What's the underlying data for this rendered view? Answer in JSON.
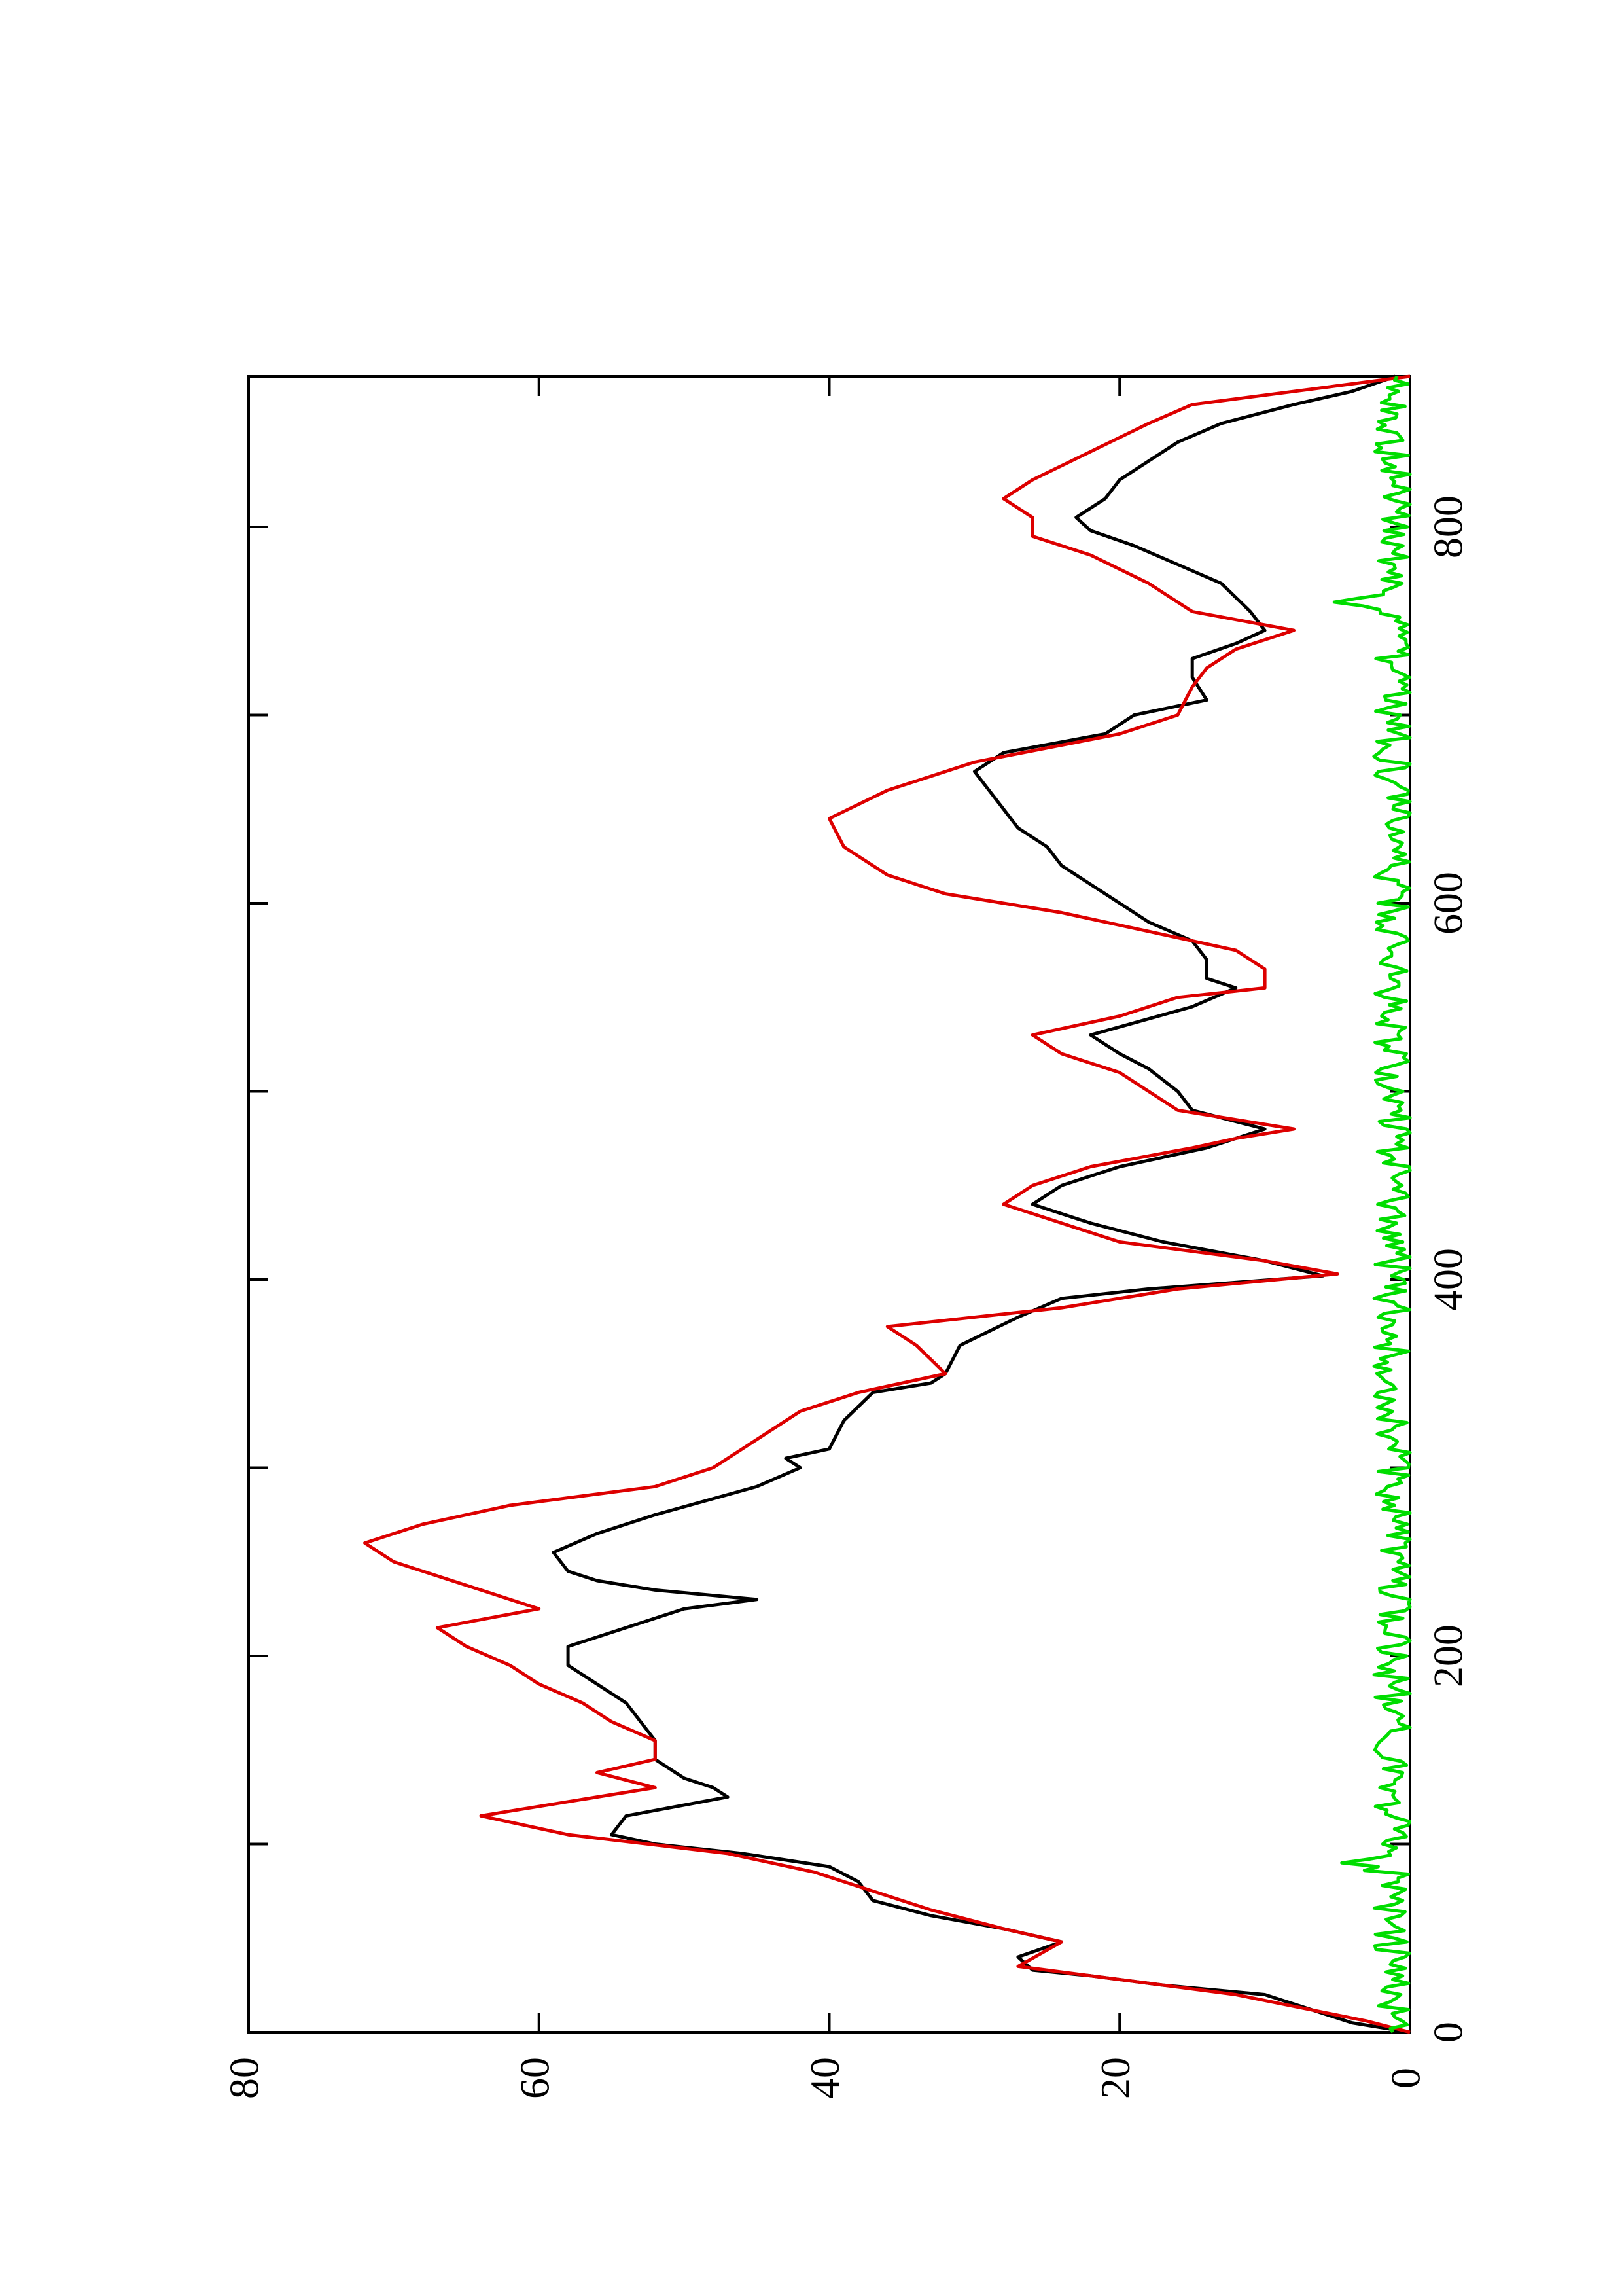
{
  "chart_data": {
    "type": "line",
    "orientation": "rotated-90-ccw",
    "title": "",
    "xlabel": "",
    "ylabel": "",
    "xlim": [
      0,
      880
    ],
    "ylim": [
      0,
      80
    ],
    "x_ticks": [
      "0",
      "200",
      "400",
      "600",
      "800"
    ],
    "y_ticks": [
      "0",
      "20",
      "40",
      "60",
      "80"
    ],
    "x_minor_ticks": [
      100,
      300,
      500,
      700
    ],
    "grid": false,
    "legend": "none",
    "series": [
      {
        "color": "#000000",
        "points": [
          [
            0,
            0
          ],
          [
            5,
            4
          ],
          [
            10,
            6
          ],
          [
            20,
            10
          ],
          [
            25,
            17
          ],
          [
            30,
            22
          ],
          [
            33,
            26
          ],
          [
            40,
            27
          ],
          [
            48,
            24
          ],
          [
            55,
            28
          ],
          [
            62,
            33
          ],
          [
            70,
            37
          ],
          [
            80,
            38
          ],
          [
            88,
            40
          ],
          [
            95,
            46
          ],
          [
            100,
            52
          ],
          [
            105,
            55
          ],
          [
            115,
            54
          ],
          [
            125,
            47
          ],
          [
            130,
            48
          ],
          [
            135,
            50
          ],
          [
            145,
            52
          ],
          [
            155,
            52
          ],
          [
            165,
            53
          ],
          [
            175,
            54
          ],
          [
            185,
            56
          ],
          [
            195,
            58
          ],
          [
            205,
            58
          ],
          [
            215,
            54
          ],
          [
            225,
            50
          ],
          [
            230,
            45
          ],
          [
            235,
            52
          ],
          [
            240,
            56
          ],
          [
            245,
            58
          ],
          [
            255,
            59
          ],
          [
            265,
            56
          ],
          [
            275,
            52
          ],
          [
            290,
            45
          ],
          [
            300,
            42
          ],
          [
            305,
            43
          ],
          [
            310,
            40
          ],
          [
            325,
            39
          ],
          [
            340,
            37
          ],
          [
            345,
            33
          ],
          [
            350,
            32
          ],
          [
            365,
            31
          ],
          [
            380,
            27
          ],
          [
            390,
            24
          ],
          [
            395,
            18
          ],
          [
            402,
            6
          ],
          [
            410,
            10
          ],
          [
            420,
            17
          ],
          [
            430,
            22
          ],
          [
            440,
            26
          ],
          [
            450,
            24
          ],
          [
            460,
            20
          ],
          [
            470,
            14
          ],
          [
            475,
            12
          ],
          [
            480,
            10
          ],
          [
            490,
            15
          ],
          [
            500,
            16
          ],
          [
            512,
            18
          ],
          [
            520,
            20
          ],
          [
            530,
            22
          ],
          [
            545,
            15
          ],
          [
            555,
            12
          ],
          [
            560,
            14
          ],
          [
            570,
            14
          ],
          [
            580,
            15
          ],
          [
            590,
            18
          ],
          [
            600,
            20
          ],
          [
            620,
            24
          ],
          [
            630,
            25
          ],
          [
            640,
            27
          ],
          [
            650,
            28
          ],
          [
            660,
            29
          ],
          [
            670,
            30
          ],
          [
            680,
            28
          ],
          [
            690,
            21
          ],
          [
            700,
            19
          ],
          [
            708,
            14
          ],
          [
            720,
            15
          ],
          [
            730,
            15
          ],
          [
            738,
            12
          ],
          [
            745,
            10
          ],
          [
            755,
            11
          ],
          [
            770,
            13
          ],
          [
            780,
            16
          ],
          [
            790,
            19
          ],
          [
            798,
            22
          ],
          [
            805,
            23
          ],
          [
            815,
            21
          ],
          [
            825,
            20
          ],
          [
            835,
            18
          ],
          [
            845,
            16
          ],
          [
            855,
            13
          ],
          [
            865,
            8
          ],
          [
            872,
            4
          ],
          [
            880,
            1
          ]
        ]
      },
      {
        "color": "#dd0000",
        "points": [
          [
            0,
            0
          ],
          [
            6,
            3
          ],
          [
            20,
            12
          ],
          [
            35,
            27
          ],
          [
            48,
            24
          ],
          [
            55,
            28
          ],
          [
            65,
            33
          ],
          [
            75,
            37
          ],
          [
            85,
            41
          ],
          [
            95,
            47
          ],
          [
            105,
            58
          ],
          [
            115,
            64
          ],
          [
            125,
            56
          ],
          [
            130,
            52
          ],
          [
            138,
            56
          ],
          [
            145,
            52
          ],
          [
            155,
            52
          ],
          [
            165,
            55
          ],
          [
            175,
            57
          ],
          [
            185,
            60
          ],
          [
            195,
            62
          ],
          [
            205,
            65
          ],
          [
            215,
            67
          ],
          [
            225,
            60
          ],
          [
            240,
            66
          ],
          [
            250,
            70
          ],
          [
            260,
            72
          ],
          [
            270,
            68
          ],
          [
            280,
            62
          ],
          [
            290,
            52
          ],
          [
            300,
            48
          ],
          [
            310,
            46
          ],
          [
            320,
            44
          ],
          [
            330,
            42
          ],
          [
            340,
            38
          ],
          [
            350,
            32
          ],
          [
            365,
            34
          ],
          [
            375,
            36
          ],
          [
            385,
            24
          ],
          [
            395,
            16
          ],
          [
            403,
            5
          ],
          [
            410,
            10
          ],
          [
            420,
            20
          ],
          [
            430,
            24
          ],
          [
            440,
            28
          ],
          [
            450,
            26
          ],
          [
            460,
            22
          ],
          [
            470,
            15
          ],
          [
            475,
            12
          ],
          [
            480,
            8
          ],
          [
            490,
            16
          ],
          [
            500,
            18
          ],
          [
            510,
            20
          ],
          [
            520,
            24
          ],
          [
            530,
            26
          ],
          [
            540,
            20
          ],
          [
            550,
            16
          ],
          [
            555,
            10
          ],
          [
            565,
            10
          ],
          [
            575,
            12
          ],
          [
            585,
            18
          ],
          [
            595,
            24
          ],
          [
            605,
            32
          ],
          [
            615,
            36
          ],
          [
            630,
            39
          ],
          [
            645,
            40
          ],
          [
            660,
            36
          ],
          [
            675,
            30
          ],
          [
            690,
            20
          ],
          [
            700,
            16
          ],
          [
            715,
            15
          ],
          [
            725,
            14
          ],
          [
            735,
            12
          ],
          [
            745,
            8
          ],
          [
            755,
            15
          ],
          [
            770,
            18
          ],
          [
            785,
            22
          ],
          [
            795,
            26
          ],
          [
            805,
            26
          ],
          [
            815,
            28
          ],
          [
            825,
            26
          ],
          [
            840,
            22
          ],
          [
            855,
            18
          ],
          [
            865,
            15
          ],
          [
            875,
            5
          ],
          [
            880,
            0
          ]
        ]
      },
      {
        "color": "#00dd00",
        "noise": true,
        "baseline": 1.2,
        "amplitude": 1.3,
        "bump_at": [
          [
            90,
            2.5
          ],
          [
            760,
            3.0
          ]
        ]
      }
    ]
  },
  "axis_labels": {
    "x_ticks": [
      "0",
      "200",
      "400",
      "600",
      "800"
    ],
    "y_ticks": [
      "0",
      "20",
      "40",
      "60",
      "80"
    ]
  }
}
